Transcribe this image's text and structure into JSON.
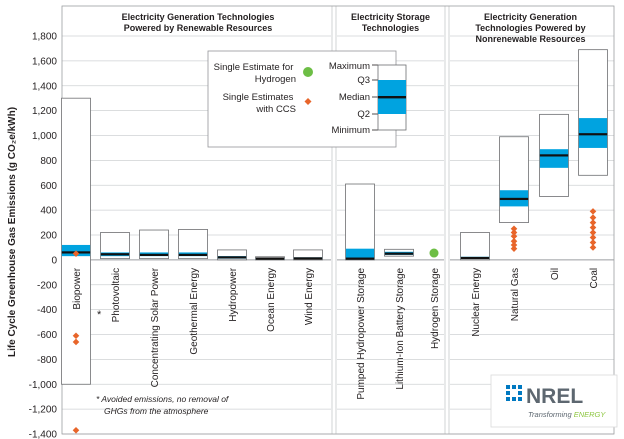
{
  "chart_data": {
    "type": "box",
    "ylabel": "Life Cycle Greenhouse Gas Emissions (g CO₂e/kWh)",
    "ylim": [
      -1400,
      1800
    ],
    "yticks": [
      -1400,
      -1200,
      -1000,
      -800,
      -600,
      -400,
      -200,
      0,
      200,
      400,
      600,
      800,
      1000,
      1200,
      1400,
      1600,
      1800
    ],
    "ytick_labels": [
      "-1,400",
      "-1,200",
      "-1,000",
      "-800",
      "-600",
      "-400",
      "-200",
      "0",
      "200",
      "400",
      "600",
      "800",
      "1,000",
      "1,200",
      "1,400",
      "1,600",
      "1,800"
    ],
    "grid": true,
    "panels": [
      {
        "title": [
          "Electricity Generation Technologies",
          "Powered by Renewable Resources"
        ],
        "categories": [
          "Biopower",
          "Photovoltaic",
          "Concentrating Solar Power",
          "Geothermal Energy",
          "Hydropower",
          "Ocean Energy",
          "Wind Energy"
        ]
      },
      {
        "title": [
          "Electricity Storage",
          "Technologies"
        ],
        "categories": [
          "Pumped Hydropower Storage",
          "Lithium-Ion Battery Storage",
          "Hydrogen Storage"
        ]
      },
      {
        "title": [
          "Electricity Generation",
          "Technologies Powered by",
          "Nonrenewable Resources"
        ],
        "categories": [
          "Nuclear Energy",
          "Natural Gas",
          "Oil",
          "Coal"
        ]
      }
    ],
    "series": [
      {
        "category": "Biopower",
        "min": -1000,
        "q1": 30,
        "median": 60,
        "q3": 120,
        "max": 1300
      },
      {
        "category": "Photovoltaic",
        "min": 10,
        "q1": 30,
        "median": 45,
        "q3": 60,
        "max": 220
      },
      {
        "category": "Concentrating Solar Power",
        "min": 10,
        "q1": 30,
        "median": 40,
        "q3": 60,
        "max": 240
      },
      {
        "category": "Geothermal Energy",
        "min": 10,
        "q1": 30,
        "median": 40,
        "q3": 60,
        "max": 245
      },
      {
        "category": "Hydropower",
        "min": 0,
        "q1": 10,
        "median": 20,
        "q3": 30,
        "max": 80
      },
      {
        "category": "Ocean Energy",
        "min": 0,
        "q1": 5,
        "median": 10,
        "q3": 15,
        "max": 25
      },
      {
        "category": "Wind Energy",
        "min": 0,
        "q1": 8,
        "median": 12,
        "q3": 20,
        "max": 80
      },
      {
        "category": "Pumped Hydropower Storage",
        "min": 0,
        "q1": 10,
        "median": 10,
        "q3": 90,
        "max": 610
      },
      {
        "category": "Lithium-Ion Battery Storage",
        "min": 30,
        "q1": 40,
        "median": 50,
        "q3": 65,
        "max": 85
      },
      {
        "category": "Nuclear Energy",
        "min": 0,
        "q1": 10,
        "median": 15,
        "q3": 25,
        "max": 220
      },
      {
        "category": "Natural Gas",
        "min": 300,
        "q1": 430,
        "median": 490,
        "q3": 560,
        "max": 990
      },
      {
        "category": "Oil",
        "min": 510,
        "q1": 740,
        "median": 840,
        "q3": 890,
        "max": 1170
      },
      {
        "category": "Coal",
        "min": 680,
        "q1": 900,
        "median": 1010,
        "q3": 1140,
        "max": 1690
      }
    ],
    "single_estimates_hydrogen": [
      {
        "category": "Hydrogen Storage",
        "value": 55
      }
    ],
    "single_estimates_ccs": [
      {
        "category": "Biopower",
        "values": [
          50,
          -610,
          -660,
          -1370
        ]
      },
      {
        "category": "Natural Gas",
        "values": [
          90,
          120,
          150,
          190,
          220,
          250
        ]
      },
      {
        "category": "Coal",
        "values": [
          100,
          140,
          180,
          220,
          260,
          300,
          340,
          390
        ]
      }
    ],
    "colors": {
      "iqr": "#00a3e0",
      "median": "#111111",
      "box_border": "#6d6e71",
      "hydrogen": "#6dbe45",
      "ccs": "#e8652a",
      "grid": "#cfd2d4",
      "panel_divider": "#c7c9cb"
    }
  },
  "legend": {
    "hydrogen_label": [
      "Single Estimate for",
      "Hydrogen"
    ],
    "ccs_label": [
      "Single Estimates",
      "with CCS"
    ],
    "box_labels": [
      "Maximum",
      "Q3",
      "Median",
      "Q2",
      "Minimum"
    ]
  },
  "footnote": {
    "marker": "*",
    "lines": [
      "* Avoided emissions, no removal of",
      "GHGs from the atmosphere"
    ]
  },
  "logo": {
    "name": "NREL",
    "tagline_a": "Transforming ",
    "tagline_b": "ENERGY"
  }
}
